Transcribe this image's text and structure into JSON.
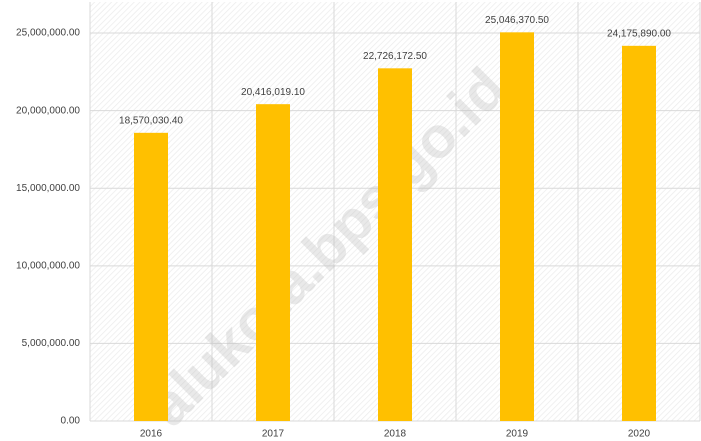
{
  "chart_data": {
    "type": "bar",
    "categories": [
      "2016",
      "2017",
      "2018",
      "2019",
      "2020"
    ],
    "values": [
      18570030.4,
      20416019.1,
      22726172.5,
      25046370.5,
      24175890
    ],
    "value_labels": [
      "18,570,030.40",
      "20,416,019.10",
      "22,726,172.50",
      "25,046,370.50",
      "24,175,890.00"
    ],
    "color": "#ffc000",
    "ylim": [
      0,
      27000000
    ],
    "yticks": [
      {
        "value": 0,
        "label": "0.00"
      },
      {
        "value": 5000000,
        "label": "5,000,000.00"
      },
      {
        "value": 10000000,
        "label": "10,000,000.00"
      },
      {
        "value": 15000000,
        "label": "15,000,000.00"
      },
      {
        "value": 20000000,
        "label": "20,000,000.00"
      },
      {
        "value": 25000000,
        "label": "25,000,000.00"
      }
    ],
    "grid": true,
    "watermark": "alukota.bps.go.id"
  }
}
